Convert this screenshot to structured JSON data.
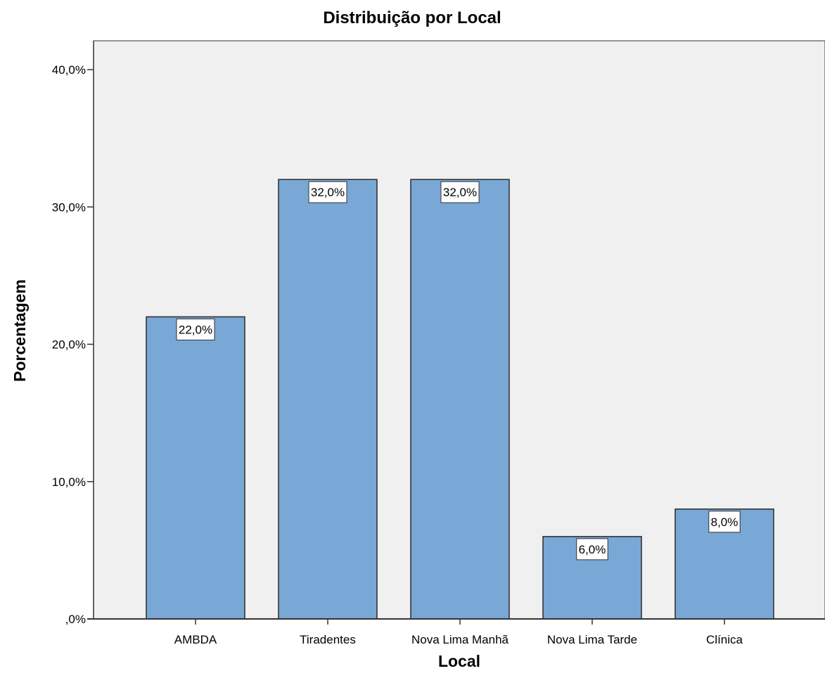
{
  "chart_data": {
    "type": "bar",
    "title": "Distribuição por Local",
    "xlabel": "Local",
    "ylabel": "Porcentagem",
    "categories": [
      "AMBDA",
      "Tiradentes",
      "Nova Lima Manhã",
      "Nova Lima Tarde",
      "Clínica"
    ],
    "values": [
      22.0,
      32.0,
      32.0,
      6.0,
      8.0
    ],
    "data_labels": [
      "22,0%",
      "32,0%",
      "32,0%",
      "6,0%",
      "8,0%"
    ],
    "yticks": [
      0,
      10,
      20,
      30,
      40
    ],
    "ytick_labels": [
      ",0%",
      "10,0%",
      "20,0%",
      "30,0%",
      "40,0%"
    ],
    "ylim": [
      0,
      42.1
    ],
    "grid": false,
    "colors": {
      "plot_background": "#f0f0f0",
      "bar_fill": "#79a7d6",
      "bar_stroke": "#2b2b2b",
      "label_box": "#ffffff"
    }
  }
}
